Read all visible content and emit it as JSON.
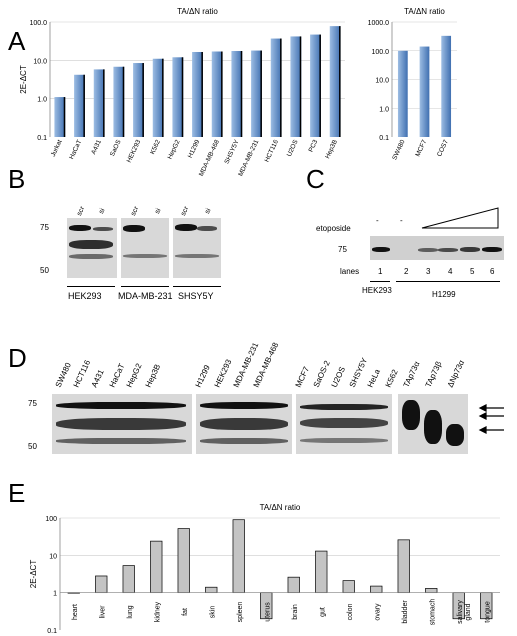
{
  "panels": {
    "A": "A",
    "B": "B",
    "C": "C",
    "D": "D",
    "E": "E"
  },
  "chart_data": [
    {
      "type": "bar",
      "title": "TA/ΔN ratio",
      "ylabel": "2E-ΔCT",
      "yscale": "log",
      "ylim": [
        0.1,
        100.0
      ],
      "yticks": [
        "0.1",
        "1.0",
        "10.0",
        "100.0"
      ],
      "categories": [
        "Jurkat",
        "HaCaT",
        "A431",
        "SaOS",
        "HEK293",
        "K562",
        "HepG2",
        "H1299",
        "MDA-MB-468",
        "SHSY5Y",
        "MDA-MB-231",
        "HCT116",
        "U2OS",
        "PC3",
        "Hep3B"
      ],
      "values": [
        1.1,
        4.2,
        5.8,
        6.8,
        8.5,
        11.0,
        12.0,
        16.5,
        17.0,
        17.5,
        18.0,
        37.0,
        42.0,
        47.0,
        78.0
      ],
      "color": "#6a93c8"
    },
    {
      "type": "bar",
      "title": "TA/ΔN ratio",
      "ylabel": "",
      "yscale": "log",
      "ylim": [
        0.1,
        1000.0
      ],
      "yticks": [
        "0.1",
        "1.0",
        "10.0",
        "100.0",
        "1000.0"
      ],
      "categories": [
        "SW480",
        "MCF7",
        "COS7"
      ],
      "values": [
        100.0,
        140.0,
        330.0
      ],
      "color": "#6a93c8"
    },
    {
      "type": "bar",
      "title": "TA/ΔN ratio",
      "ylabel": "2E-ΔCT",
      "yscale": "log",
      "ylim": [
        0.1,
        100
      ],
      "yticks": [
        "0.1",
        "1",
        "10",
        "100"
      ],
      "categories": [
        "heart",
        "liver",
        "lung",
        "kidney",
        "fat",
        "skin",
        "spleen",
        "uterus",
        "brain",
        "gut",
        "colon",
        "ovary",
        "bladder",
        "stomach",
        "salivary gland",
        "tongue"
      ],
      "values": [
        1.0,
        2.8,
        5.3,
        24.0,
        52.0,
        1.4,
        90.0,
        0.2,
        2.6,
        13.0,
        2.1,
        1.5,
        26.0,
        1.3,
        0.2,
        0.2
      ],
      "color": "#c8c8c8"
    }
  ],
  "blotB": {
    "marker_75": "75",
    "marker_50": "50",
    "lane_scr": "scr",
    "lane_si": "si",
    "groups": [
      "HEK293",
      "MDA-MB-231",
      "SHSY5Y"
    ]
  },
  "blotC": {
    "etoposide": "etoposide",
    "dash": "-",
    "marker_75": "75",
    "lanes_label": "lanes",
    "lanes": [
      "1",
      "2",
      "3",
      "4",
      "5",
      "6"
    ],
    "group_hek": "HEK293",
    "group_h1299": "H1299"
  },
  "blotD": {
    "marker_75": "75",
    "marker_50": "50",
    "lanes": [
      "SW480",
      "HCT116",
      "A431",
      "HaCaT",
      "HepG2",
      "Hep3B",
      "H1299",
      "HEK293",
      "MDA-MB-231",
      "MDA-MB-468",
      "MCF7",
      "SaOS-2",
      "U2OS",
      "SHSY5Y",
      "HeLa",
      "K562",
      "TAp73α",
      "TAp73β",
      "ΔNp73α"
    ]
  }
}
